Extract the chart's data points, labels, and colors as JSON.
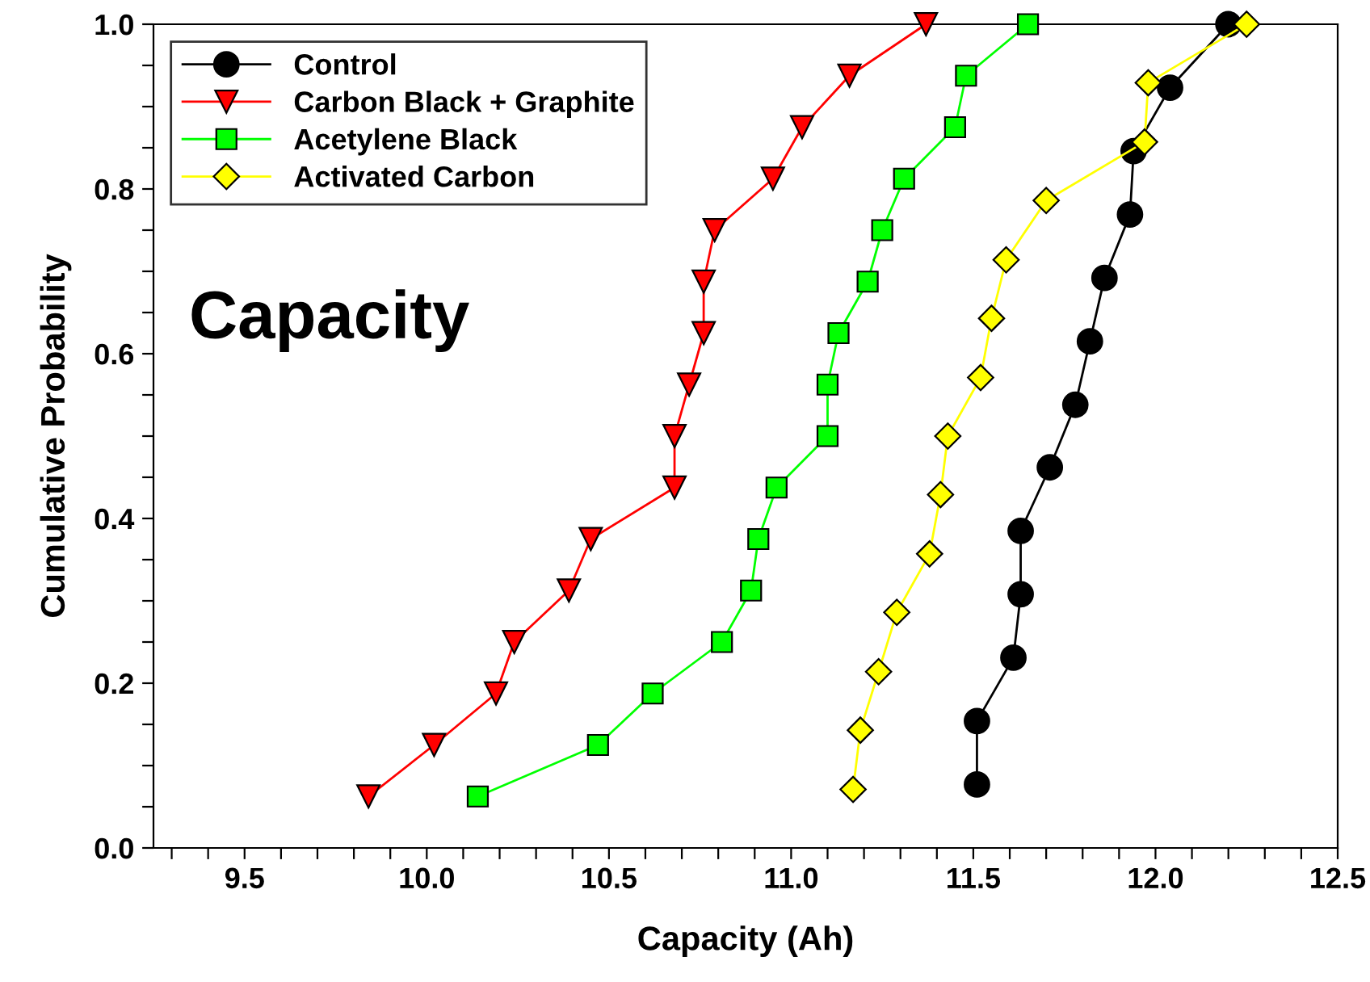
{
  "chart_data": {
    "type": "line",
    "xlabel": "Capacity (Ah)",
    "ylabel": "Cumulative Probability",
    "annotations": [
      "Capacity"
    ],
    "xlim": [
      9.25,
      12.5
    ],
    "ylim": [
      0,
      1
    ],
    "xticks": [
      {
        "value": 9.3,
        "label": null
      },
      {
        "value": 9.4,
        "label": null
      },
      {
        "value": 9.5,
        "label": "9.5"
      },
      {
        "value": 9.6,
        "label": null
      },
      {
        "value": 9.7,
        "label": null
      },
      {
        "value": 9.8,
        "label": null
      },
      {
        "value": 9.9,
        "label": null
      },
      {
        "value": 10.0,
        "label": "10.0"
      },
      {
        "value": 10.1,
        "label": null
      },
      {
        "value": 10.2,
        "label": null
      },
      {
        "value": 10.3,
        "label": null
      },
      {
        "value": 10.4,
        "label": null
      },
      {
        "value": 10.5,
        "label": "10.5"
      },
      {
        "value": 10.6,
        "label": null
      },
      {
        "value": 10.7,
        "label": null
      },
      {
        "value": 10.8,
        "label": null
      },
      {
        "value": 10.9,
        "label": null
      },
      {
        "value": 11.0,
        "label": "11.0"
      },
      {
        "value": 11.1,
        "label": null
      },
      {
        "value": 11.2,
        "label": null
      },
      {
        "value": 11.3,
        "label": null
      },
      {
        "value": 11.4,
        "label": null
      },
      {
        "value": 11.5,
        "label": "11.5"
      },
      {
        "value": 11.6,
        "label": null
      },
      {
        "value": 11.7,
        "label": null
      },
      {
        "value": 11.8,
        "label": null
      },
      {
        "value": 11.9,
        "label": null
      },
      {
        "value": 12.0,
        "label": "12.0"
      },
      {
        "value": 12.1,
        "label": null
      },
      {
        "value": 12.2,
        "label": null
      },
      {
        "value": 12.3,
        "label": null
      },
      {
        "value": 12.4,
        "label": null
      },
      {
        "value": 12.5,
        "label": "12.5"
      }
    ],
    "yticks": [
      {
        "value": 0,
        "label": "0.0"
      },
      {
        "value": 0.05,
        "label": null
      },
      {
        "value": 0.1,
        "label": null
      },
      {
        "value": 0.15,
        "label": null
      },
      {
        "value": 0.2,
        "label": "0.2"
      },
      {
        "value": 0.25,
        "label": null
      },
      {
        "value": 0.3,
        "label": null
      },
      {
        "value": 0.35,
        "label": null
      },
      {
        "value": 0.4,
        "label": "0.4"
      },
      {
        "value": 0.45,
        "label": null
      },
      {
        "value": 0.5,
        "label": null
      },
      {
        "value": 0.55,
        "label": null
      },
      {
        "value": 0.6,
        "label": "0.6"
      },
      {
        "value": 0.65,
        "label": null
      },
      {
        "value": 0.7,
        "label": null
      },
      {
        "value": 0.75,
        "label": null
      },
      {
        "value": 0.8,
        "label": "0.8"
      },
      {
        "value": 0.85,
        "label": null
      },
      {
        "value": 0.9,
        "label": null
      },
      {
        "value": 0.95,
        "label": null
      },
      {
        "value": 1.0,
        "label": "1.0"
      }
    ],
    "grid": false,
    "legend": "top left",
    "line_style": "solid",
    "series": [
      {
        "name": "Control",
        "color": "#000000",
        "marker": "circle",
        "x": [
          11.51,
          11.51,
          11.61,
          11.63,
          11.63,
          11.71,
          11.78,
          11.82,
          11.86,
          11.93,
          11.94,
          12.04,
          12.2
        ],
        "values": [
          0.077,
          0.154,
          0.231,
          0.308,
          0.385,
          0.462,
          0.538,
          0.615,
          0.692,
          0.769,
          0.846,
          0.923,
          1.0
        ]
      },
      {
        "name": "Carbon Black + Graphite",
        "color": "#ff0000",
        "marker": "triangle",
        "x": [
          9.84,
          10.02,
          10.19,
          10.24,
          10.39,
          10.45,
          10.68,
          10.68,
          10.72,
          10.76,
          10.76,
          10.79,
          10.95,
          11.03,
          11.16,
          11.37
        ],
        "values": [
          0.0625,
          0.125,
          0.1875,
          0.25,
          0.3125,
          0.375,
          0.4375,
          0.5,
          0.5625,
          0.625,
          0.6875,
          0.75,
          0.8125,
          0.875,
          0.9375,
          1.0
        ]
      },
      {
        "name": "Acetylene Black",
        "color": "#00ff00",
        "marker": "square",
        "x": [
          10.14,
          10.47,
          10.62,
          10.81,
          10.89,
          10.91,
          10.96,
          11.1,
          11.1,
          11.13,
          11.21,
          11.25,
          11.31,
          11.45,
          11.48,
          11.65
        ],
        "values": [
          0.0625,
          0.125,
          0.1875,
          0.25,
          0.3125,
          0.375,
          0.4375,
          0.5,
          0.5625,
          0.625,
          0.6875,
          0.75,
          0.8125,
          0.875,
          0.9375,
          1.0
        ]
      },
      {
        "name": "Activated Carbon",
        "color": "#ffff00",
        "marker": "diamond",
        "x": [
          11.17,
          11.19,
          11.24,
          11.29,
          11.38,
          11.41,
          11.43,
          11.52,
          11.55,
          11.59,
          11.7,
          11.97,
          11.98,
          12.25
        ],
        "values": [
          0.071,
          0.143,
          0.214,
          0.286,
          0.357,
          0.429,
          0.5,
          0.571,
          0.643,
          0.714,
          0.786,
          0.857,
          0.929,
          1.0
        ]
      }
    ]
  }
}
